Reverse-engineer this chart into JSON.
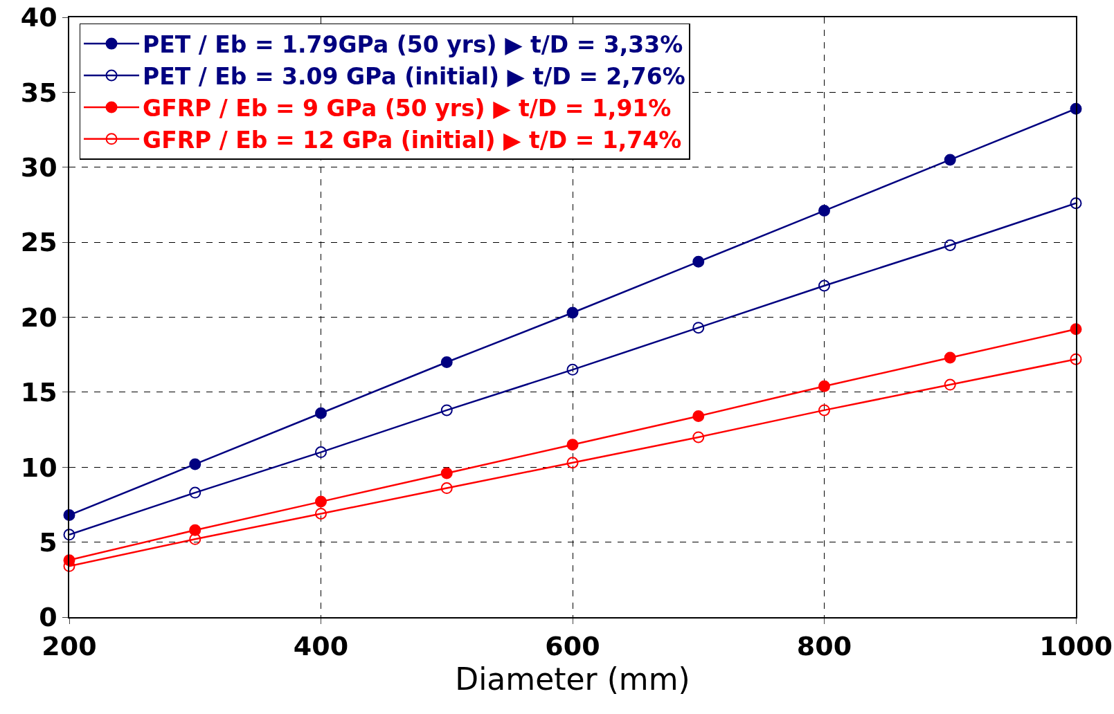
{
  "chart_data": {
    "type": "line",
    "xlabel": "Diameter (mm)",
    "x": [
      200,
      300,
      400,
      500,
      600,
      700,
      800,
      900,
      1000
    ],
    "xlim": [
      200,
      1000
    ],
    "xticks": [
      200,
      400,
      600,
      800,
      1000
    ],
    "ylim": [
      0,
      40
    ],
    "yticks": [
      0,
      5,
      10,
      15,
      20,
      25,
      30,
      35,
      40
    ],
    "grid": true,
    "legend": "top left",
    "line_style": "solid",
    "series": [
      {
        "name": "PET / Eb = 1.79GPa (50 yrs) ▶ t/D = 3,33%",
        "color": "#000080",
        "marker": "circle",
        "values": [
          6.8,
          10.2,
          13.6,
          17.0,
          20.3,
          23.7,
          27.1,
          30.5,
          33.9
        ]
      },
      {
        "name": "PET / Eb = 3.09 GPa (initial) ▶ t/D = 2,76%",
        "color": "#000080",
        "marker": "circle-open",
        "values": [
          5.5,
          8.3,
          11.0,
          13.8,
          16.5,
          19.3,
          22.1,
          24.8,
          27.6
        ]
      },
      {
        "name": "GFRP / Eb = 9 GPa (50 yrs) ▶ t/D = 1,91%",
        "color": "#ff0000",
        "marker": "circle",
        "values": [
          3.8,
          5.8,
          7.7,
          9.6,
          11.5,
          13.4,
          15.4,
          17.3,
          19.2
        ]
      },
      {
        "name": "GFRP / Eb = 12 GPa (initial) ▶ t/D = 1,74%",
        "color": "#ff0000",
        "marker": "circle-open",
        "values": [
          3.4,
          5.2,
          6.9,
          8.6,
          10.3,
          12.0,
          13.8,
          15.5,
          17.2
        ]
      }
    ]
  }
}
